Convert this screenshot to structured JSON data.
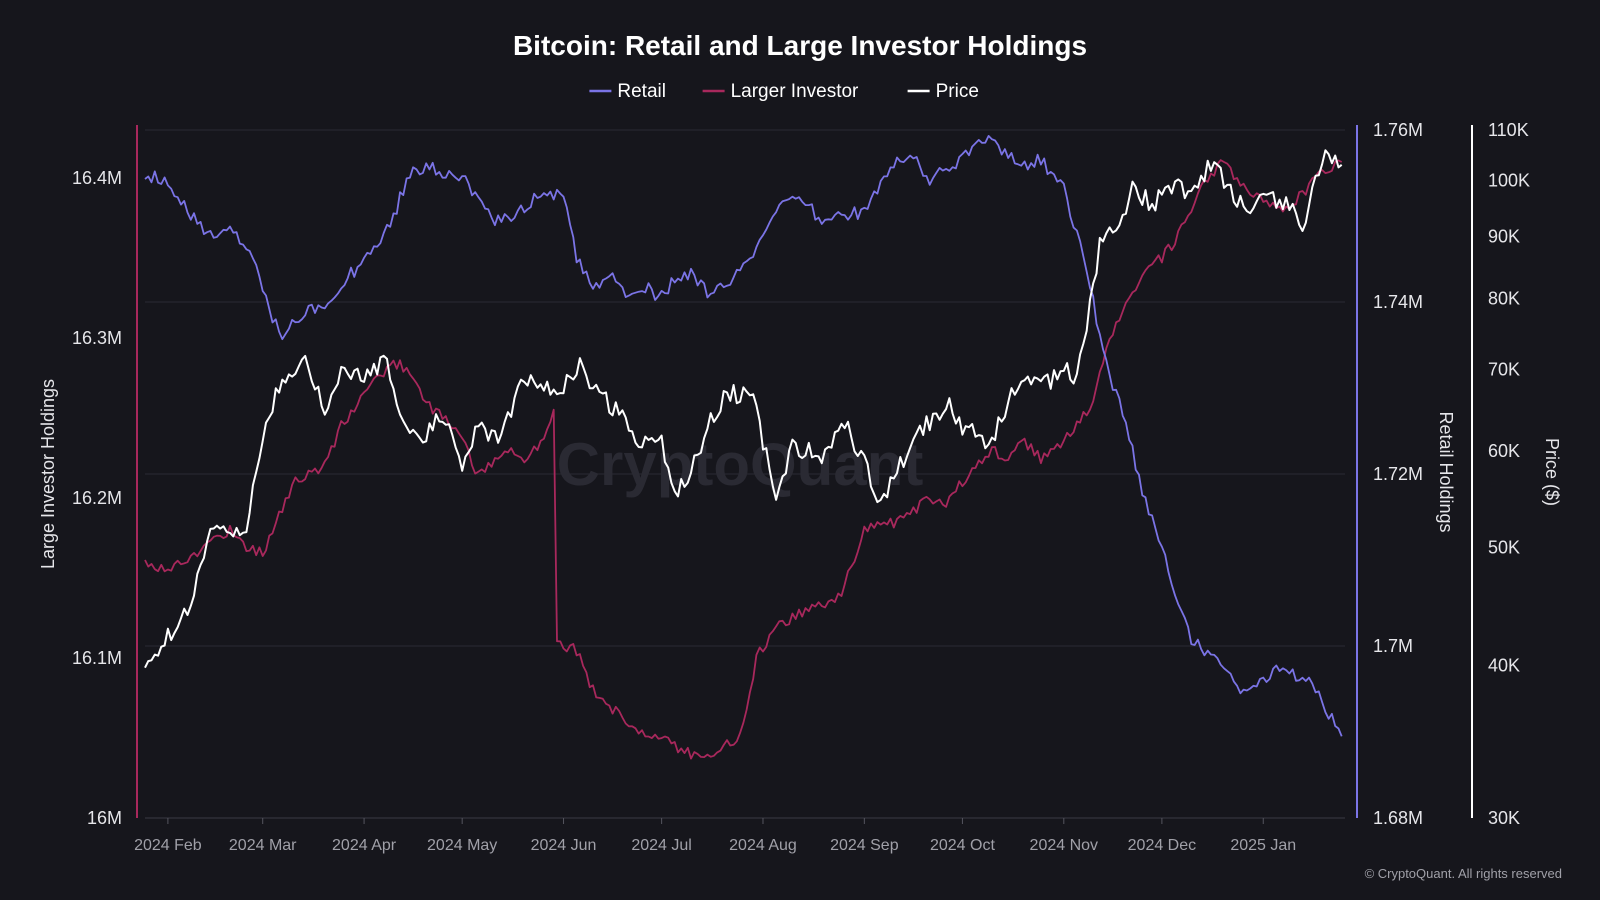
{
  "chart_data": {
    "type": "line",
    "title": "Bitcoin: Retail and Large Investor Holdings",
    "watermark": "CryptoQuant",
    "copyright": "© CryptoQuant. All rights reserved",
    "legend": {
      "placement": "top-center",
      "items": [
        {
          "name": "Retail",
          "color": "#7b74e6"
        },
        {
          "name": "Larger Investor",
          "color": "#a8285c"
        },
        {
          "name": "Price",
          "color": "#ffffff"
        }
      ]
    },
    "x_ticks": [
      "2024 Feb",
      "2024 Mar",
      "2024 Apr",
      "2024 May",
      "2024 Jun",
      "2024 Jul",
      "2024 Aug",
      "2024 Sep",
      "2024 Oct",
      "2024 Nov",
      "2024 Dec",
      "2025 Jan"
    ],
    "axes": {
      "left": {
        "label": "Large Investor Holdings",
        "ticks": [
          "16M",
          "16.1M",
          "16.2M",
          "16.3M",
          "16.4M"
        ],
        "tick_values": [
          16.0,
          16.1,
          16.2,
          16.3,
          16.4
        ],
        "range": [
          16.0,
          16.43
        ],
        "unit": "M",
        "color": "#a8285c"
      },
      "right1": {
        "label": "Retail Holdings",
        "ticks": [
          "1.68M",
          "1.7M",
          "1.72M",
          "1.74M",
          "1.76M"
        ],
        "tick_values": [
          1.68,
          1.7,
          1.72,
          1.74,
          1.76
        ],
        "range": [
          1.68,
          1.76
        ],
        "unit": "M",
        "color": "#7b74e6"
      },
      "right2": {
        "label": "Price ($)",
        "scale": "log",
        "ticks": [
          "30K",
          "40K",
          "50K",
          "60K",
          "70K",
          "80K",
          "90K",
          "100K",
          "110K"
        ],
        "tick_values": [
          30000,
          40000,
          50000,
          60000,
          70000,
          80000,
          90000,
          100000,
          110000
        ],
        "range": [
          30000,
          110000
        ],
        "color": "#ffffff"
      }
    },
    "series": [
      {
        "name": "Retail",
        "axis": "right1",
        "x": [
          "2024-01-25",
          "2024-02-01",
          "2024-02-05",
          "2024-02-10",
          "2024-02-15",
          "2024-02-20",
          "2024-02-25",
          "2024-03-01",
          "2024-03-06",
          "2024-03-11",
          "2024-03-15",
          "2024-03-20",
          "2024-03-25",
          "2024-04-01",
          "2024-04-05",
          "2024-04-10",
          "2024-04-15",
          "2024-04-20",
          "2024-04-25",
          "2024-05-01",
          "2024-05-05",
          "2024-05-10",
          "2024-05-15",
          "2024-05-20",
          "2024-05-25",
          "2024-06-01",
          "2024-06-05",
          "2024-06-10",
          "2024-06-15",
          "2024-06-20",
          "2024-06-25",
          "2024-07-01",
          "2024-07-05",
          "2024-07-10",
          "2024-07-15",
          "2024-07-20",
          "2024-07-25",
          "2024-08-01",
          "2024-08-05",
          "2024-08-10",
          "2024-08-15",
          "2024-08-20",
          "2024-08-25",
          "2024-09-01",
          "2024-09-05",
          "2024-09-10",
          "2024-09-15",
          "2024-09-20",
          "2024-09-25",
          "2024-10-01",
          "2024-10-05",
          "2024-10-10",
          "2024-10-15",
          "2024-10-20",
          "2024-10-25",
          "2024-11-01",
          "2024-11-05",
          "2024-11-10",
          "2024-11-15",
          "2024-11-20",
          "2024-11-25",
          "2024-12-01",
          "2024-12-05",
          "2024-12-10",
          "2024-12-15",
          "2024-12-20",
          "2024-12-25",
          "2025-01-01",
          "2025-01-05",
          "2025-01-10",
          "2025-01-15",
          "2025-01-20",
          "2025-01-25"
        ],
        "values": [
          1.755,
          1.754,
          1.752,
          1.749,
          1.748,
          1.7485,
          1.746,
          1.742,
          1.736,
          1.738,
          1.739,
          1.74,
          1.742,
          1.745,
          1.747,
          1.75,
          1.755,
          1.756,
          1.7545,
          1.755,
          1.752,
          1.7495,
          1.75,
          1.751,
          1.753,
          1.752,
          1.745,
          1.742,
          1.743,
          1.741,
          1.742,
          1.7405,
          1.7425,
          1.7435,
          1.741,
          1.7415,
          1.744,
          1.747,
          1.751,
          1.752,
          1.751,
          1.749,
          1.75,
          1.7505,
          1.753,
          1.756,
          1.7575,
          1.754,
          1.755,
          1.7565,
          1.758,
          1.759,
          1.757,
          1.756,
          1.7565,
          1.753,
          1.748,
          1.74,
          1.731,
          1.726,
          1.718,
          1.712,
          1.706,
          1.701,
          1.699,
          1.697,
          1.695,
          1.696,
          1.697,
          1.6965,
          1.6965,
          1.693,
          1.6895
        ]
      },
      {
        "name": "Larger Investor",
        "axis": "left",
        "x": [
          "2024-01-25",
          "2024-02-01",
          "2024-02-05",
          "2024-02-10",
          "2024-02-15",
          "2024-02-20",
          "2024-02-25",
          "2024-03-01",
          "2024-03-06",
          "2024-03-11",
          "2024-03-15",
          "2024-03-20",
          "2024-03-25",
          "2024-04-01",
          "2024-04-05",
          "2024-04-10",
          "2024-04-15",
          "2024-04-20",
          "2024-04-25",
          "2024-05-01",
          "2024-05-05",
          "2024-05-10",
          "2024-05-15",
          "2024-05-20",
          "2024-05-25",
          "2024-05-29",
          "2024-05-30",
          "2024-06-05",
          "2024-06-10",
          "2024-06-15",
          "2024-06-20",
          "2024-06-25",
          "2024-07-01",
          "2024-07-05",
          "2024-07-10",
          "2024-07-15",
          "2024-07-20",
          "2024-07-25",
          "2024-07-30",
          "2024-08-05",
          "2024-08-10",
          "2024-08-15",
          "2024-08-20",
          "2024-08-25",
          "2024-09-01",
          "2024-09-05",
          "2024-09-10",
          "2024-09-15",
          "2024-09-20",
          "2024-09-25",
          "2024-10-01",
          "2024-10-05",
          "2024-10-10",
          "2024-10-15",
          "2024-10-20",
          "2024-10-25",
          "2024-11-01",
          "2024-11-05",
          "2024-11-10",
          "2024-11-15",
          "2024-11-20",
          "2024-11-25",
          "2024-12-01",
          "2024-12-05",
          "2024-12-10",
          "2024-12-15",
          "2024-12-20",
          "2024-12-25",
          "2025-01-01",
          "2025-01-05",
          "2025-01-10",
          "2025-01-15",
          "2025-01-20",
          "2025-01-25"
        ],
        "values": [
          16.16,
          16.155,
          16.16,
          16.165,
          16.175,
          16.18,
          16.17,
          16.165,
          16.19,
          16.21,
          16.215,
          16.22,
          16.245,
          16.265,
          16.275,
          16.285,
          16.28,
          16.26,
          16.25,
          16.24,
          16.215,
          16.22,
          16.23,
          16.225,
          16.235,
          16.255,
          16.11,
          16.105,
          16.08,
          16.07,
          16.06,
          16.055,
          16.05,
          16.045,
          16.04,
          16.04,
          16.045,
          16.05,
          16.1,
          16.12,
          16.125,
          16.13,
          16.135,
          16.14,
          16.18,
          16.185,
          16.185,
          16.19,
          16.2,
          16.195,
          16.21,
          16.22,
          16.23,
          16.225,
          16.235,
          16.225,
          16.235,
          16.245,
          16.26,
          16.3,
          16.32,
          16.34,
          16.35,
          16.36,
          16.38,
          16.4,
          16.41,
          16.395,
          16.385,
          16.38,
          16.385,
          16.395,
          16.405,
          16.41
        ]
      },
      {
        "name": "Price",
        "axis": "right2",
        "x": [
          "2024-01-25",
          "2024-02-01",
          "2024-02-05",
          "2024-02-10",
          "2024-02-15",
          "2024-02-20",
          "2024-02-25",
          "2024-03-01",
          "2024-03-05",
          "2024-03-10",
          "2024-03-14",
          "2024-03-20",
          "2024-03-25",
          "2024-04-01",
          "2024-04-08",
          "2024-04-13",
          "2024-04-18",
          "2024-04-25",
          "2024-05-01",
          "2024-05-06",
          "2024-05-12",
          "2024-05-20",
          "2024-05-25",
          "2024-06-01",
          "2024-06-06",
          "2024-06-12",
          "2024-06-18",
          "2024-06-24",
          "2024-07-01",
          "2024-07-05",
          "2024-07-10",
          "2024-07-15",
          "2024-07-21",
          "2024-07-29",
          "2024-08-05",
          "2024-08-10",
          "2024-08-20",
          "2024-08-25",
          "2024-09-01",
          "2024-09-06",
          "2024-09-12",
          "2024-09-20",
          "2024-09-27",
          "2024-10-01",
          "2024-10-05",
          "2024-10-10",
          "2024-10-15",
          "2024-10-20",
          "2024-10-25",
          "2024-11-01",
          "2024-11-05",
          "2024-11-08",
          "2024-11-12",
          "2024-11-17",
          "2024-11-22",
          "2024-11-28",
          "2024-12-05",
          "2024-12-10",
          "2024-12-17",
          "2024-12-22",
          "2024-12-28",
          "2025-01-02",
          "2025-01-08",
          "2025-01-13",
          "2025-01-20",
          "2025-01-25"
        ],
        "values": [
          40000,
          42500,
          43000,
          47000,
          52000,
          51500,
          52000,
          61000,
          67000,
          68500,
          72000,
          64000,
          69500,
          69000,
          71500,
          63000,
          61500,
          64000,
          58500,
          63500,
          61000,
          69000,
          68000,
          67500,
          70500,
          66500,
          64500,
          61000,
          61000,
          55500,
          57500,
          63000,
          67000,
          66500,
          54000,
          60500,
          59500,
          64000,
          58500,
          54500,
          58500,
          63000,
          65500,
          62500,
          62000,
          61000,
          66000,
          69000,
          67500,
          70000,
          68500,
          76000,
          88500,
          91000,
          98500,
          95500,
          99000,
          98000,
          104000,
          97500,
          94500,
          96500,
          95500,
          92000,
          104500,
          103000
        ]
      }
    ]
  }
}
